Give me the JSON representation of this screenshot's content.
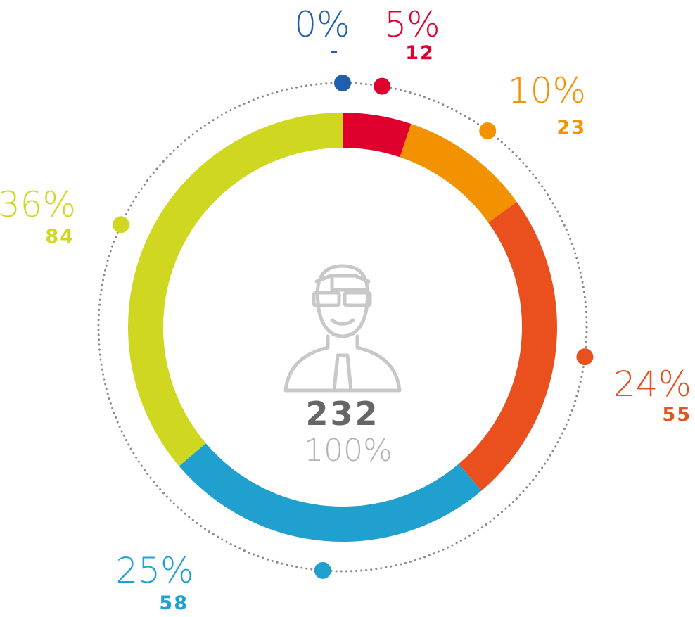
{
  "chart_data": {
    "type": "donut",
    "values": [
      0,
      12,
      23,
      55,
      58,
      84
    ],
    "value_labels": [
      "-",
      "12",
      "23",
      "55",
      "58",
      "84"
    ],
    "percentages": [
      0,
      5,
      10,
      24,
      25,
      36
    ],
    "percentage_labels": [
      "0%",
      "5%",
      "10%",
      "24%",
      "25%",
      "36%"
    ],
    "colors": [
      "#1f5fad",
      "#e0002e",
      "#f39200",
      "#e9501e",
      "#20a0cf",
      "#cfd721"
    ],
    "total": 232,
    "total_percentage": {
      "value": 100,
      "label": "100%"
    }
  }
}
